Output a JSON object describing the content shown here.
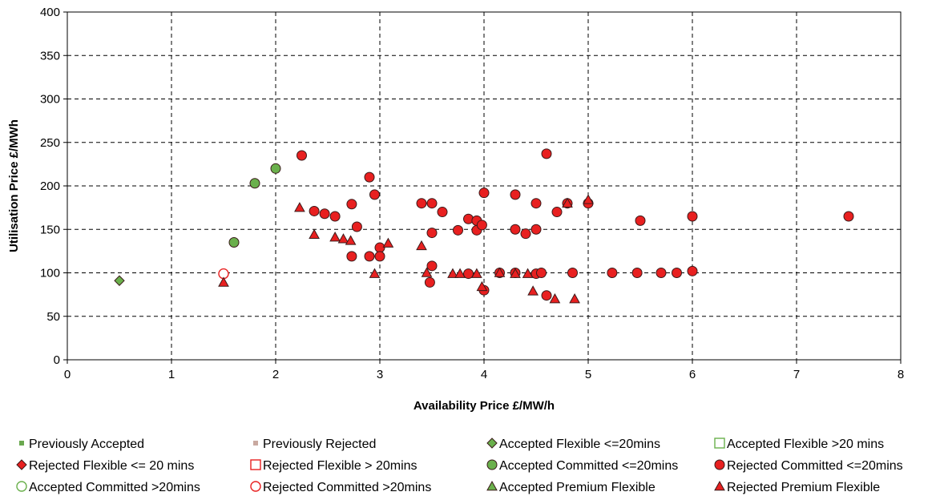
{
  "chart_data": {
    "type": "scatter",
    "xlabel": "Availability Price £/MW/h",
    "ylabel": "Utilisation Price £/MWh",
    "xlim": [
      0,
      8
    ],
    "ylim": [
      0,
      400
    ],
    "x_ticks": [
      "0",
      "1",
      "2",
      "3",
      "4",
      "5",
      "6",
      "7",
      "8"
    ],
    "y_ticks": [
      "0",
      "50",
      "100",
      "150",
      "200",
      "250",
      "300",
      "350",
      "400"
    ],
    "grid": true,
    "legend_position": "bottom",
    "series": [
      {
        "name": "Previously Accepted",
        "marker": "small-square",
        "color": "#6aa84f",
        "filled": true,
        "points": []
      },
      {
        "name": "Previously Rejected",
        "marker": "small-square",
        "color": "#c9a9a0",
        "filled": true,
        "points": []
      },
      {
        "name": "Accepted Flexible <=20mins",
        "marker": "diamond",
        "color": "#6ab04c",
        "filled": true,
        "points": [
          [
            0.5,
            91
          ]
        ]
      },
      {
        "name": "Accepted Flexible >20 mins",
        "marker": "square",
        "color": "#6ab04c",
        "filled": false,
        "points": []
      },
      {
        "name": "Rejected Flexible <= 20 mins",
        "marker": "diamond",
        "color": "#e82020",
        "filled": true,
        "points": []
      },
      {
        "name": "Rejected Flexible > 20mins",
        "marker": "square",
        "color": "#e82020",
        "filled": false,
        "points": []
      },
      {
        "name": "Accepted Committed <=20mins",
        "marker": "circle",
        "color": "#6ab04c",
        "filled": true,
        "points": [
          [
            1.6,
            135
          ],
          [
            1.8,
            203
          ],
          [
            2.0,
            220
          ]
        ]
      },
      {
        "name": "Rejected Committed <=20mins",
        "marker": "circle",
        "color": "#e82020",
        "filled": true,
        "points": [
          [
            2.25,
            235
          ],
          [
            2.37,
            171
          ],
          [
            2.47,
            168
          ],
          [
            2.57,
            165
          ],
          [
            2.73,
            179
          ],
          [
            2.73,
            119
          ],
          [
            2.78,
            153
          ],
          [
            2.9,
            210
          ],
          [
            2.9,
            119
          ],
          [
            2.95,
            190
          ],
          [
            3.0,
            129
          ],
          [
            3.0,
            119
          ],
          [
            3.4,
            180
          ],
          [
            3.5,
            180
          ],
          [
            3.5,
            146
          ],
          [
            3.5,
            108
          ],
          [
            3.48,
            89
          ],
          [
            3.6,
            170
          ],
          [
            3.75,
            149
          ],
          [
            3.85,
            162
          ],
          [
            3.85,
            99
          ],
          [
            3.93,
            160
          ],
          [
            3.93,
            149
          ],
          [
            3.98,
            155
          ],
          [
            4.0,
            192
          ],
          [
            4.0,
            80
          ],
          [
            4.15,
            100
          ],
          [
            4.3,
            190
          ],
          [
            4.3,
            150
          ],
          [
            4.3,
            100
          ],
          [
            4.4,
            145
          ],
          [
            4.5,
            180
          ],
          [
            4.5,
            150
          ],
          [
            4.5,
            99
          ],
          [
            4.55,
            100
          ],
          [
            4.6,
            237
          ],
          [
            4.6,
            74
          ],
          [
            4.7,
            170
          ],
          [
            4.8,
            180
          ],
          [
            4.85,
            100
          ],
          [
            5.0,
            180
          ],
          [
            5.23,
            100
          ],
          [
            5.47,
            100
          ],
          [
            5.5,
            160
          ],
          [
            5.7,
            100
          ],
          [
            5.85,
            100
          ],
          [
            6.0,
            165
          ],
          [
            6.0,
            102
          ],
          [
            7.5,
            165
          ]
        ]
      },
      {
        "name": "Accepted Committed >20mins",
        "marker": "circle",
        "color": "#6ab04c",
        "filled": false,
        "points": []
      },
      {
        "name": "Rejected Committed >20mins",
        "marker": "circle",
        "color": "#e82020",
        "filled": false,
        "points": [
          [
            1.5,
            99
          ]
        ]
      },
      {
        "name": "Accepted Premium Flexible",
        "marker": "triangle",
        "color": "#6ab04c",
        "filled": true,
        "points": []
      },
      {
        "name": "Rejected Premium Flexible",
        "marker": "triangle",
        "color": "#e82020",
        "filled": true,
        "points": [
          [
            1.5,
            89
          ],
          [
            2.23,
            175
          ],
          [
            2.37,
            144
          ],
          [
            2.57,
            141
          ],
          [
            2.65,
            139
          ],
          [
            2.72,
            137
          ],
          [
            2.95,
            99
          ],
          [
            3.08,
            134
          ],
          [
            3.4,
            131
          ],
          [
            3.45,
            100
          ],
          [
            3.7,
            99
          ],
          [
            3.77,
            99
          ],
          [
            3.93,
            99
          ],
          [
            3.98,
            84
          ],
          [
            4.15,
            100
          ],
          [
            4.3,
            99
          ],
          [
            4.42,
            99
          ],
          [
            4.47,
            79
          ],
          [
            4.68,
            70
          ],
          [
            4.8,
            180
          ],
          [
            4.87,
            70
          ],
          [
            5.0,
            184
          ]
        ]
      }
    ]
  }
}
